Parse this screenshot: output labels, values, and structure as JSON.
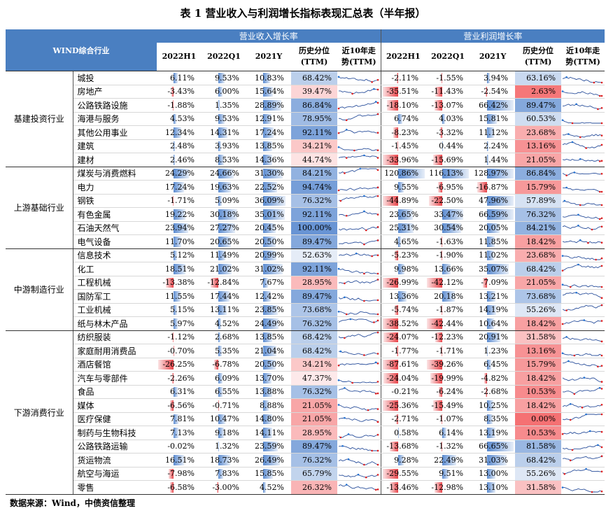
{
  "title": "表 1    营业收入与利润增长指标表现汇总表（半年报）",
  "source": "数据来源：Wind，中债资信整理",
  "header": {
    "industry_col": "WIND综合行业",
    "revenue_group": "营业收入增长率",
    "profit_group": "营业利润增长率",
    "cols": [
      "2022H1",
      "2022Q1",
      "2021Y",
      "历史分位\n(TTM)",
      "近10年走\n势(TTM)"
    ]
  },
  "colors": {
    "header_blue": "#4a7fc1",
    "bar_blue": "#5b8bd0",
    "bar_red": "#e8454a",
    "pct_high": "#5b8bd0",
    "pct_low": "#f4696b",
    "spark_line": "#2a4f9b",
    "spark_red": "#e02020",
    "spark_blue": "#1f6fd0"
  },
  "groups": [
    {
      "name": "基建投资行业",
      "rows": [
        {
          "name": "城投",
          "rev": [
            "6.11%",
            "9.53%",
            "10.83%",
            "68.42%"
          ],
          "prof": [
            "-2.11%",
            "-1.55%",
            "3.94%",
            "63.16%"
          ],
          "rv": [
            6.11,
            9.53,
            10.83,
            68.42
          ],
          "pv": [
            -2.11,
            -1.55,
            3.94,
            63.16
          ]
        },
        {
          "name": "房地产",
          "rev": [
            "-3.43%",
            "6.00%",
            "15.64%",
            "39.47%"
          ],
          "prof": [
            "-35.51%",
            "-11.43%",
            "-2.54%",
            "2.63%"
          ],
          "rv": [
            -3.43,
            6.0,
            15.64,
            39.47
          ],
          "pv": [
            -35.51,
            -11.43,
            -2.54,
            2.63
          ]
        },
        {
          "name": "公路铁路设施",
          "rev": [
            "-1.88%",
            "1.35%",
            "28.89%",
            "86.84%"
          ],
          "prof": [
            "-18.10%",
            "-13.07%",
            "66.42%",
            "89.47%"
          ],
          "rv": [
            -1.88,
            1.35,
            28.89,
            86.84
          ],
          "pv": [
            -18.1,
            -13.07,
            66.42,
            89.47
          ]
        },
        {
          "name": "海港与服务",
          "rev": [
            "4.53%",
            "9.53%",
            "12.91%",
            "78.95%"
          ],
          "prof": [
            "6.74%",
            "4.03%",
            "15.81%",
            "60.53%"
          ],
          "rv": [
            4.53,
            9.53,
            12.91,
            78.95
          ],
          "pv": [
            6.74,
            4.03,
            15.81,
            60.53
          ]
        },
        {
          "name": "其他公用事业",
          "rev": [
            "12.34%",
            "14.31%",
            "17.24%",
            "92.11%"
          ],
          "prof": [
            "-8.23%",
            "-3.32%",
            "11.12%",
            "23.68%"
          ],
          "rv": [
            12.34,
            14.31,
            17.24,
            92.11
          ],
          "pv": [
            -8.23,
            -3.32,
            11.12,
            23.68
          ]
        },
        {
          "name": "建筑",
          "rev": [
            "2.48%",
            "3.93%",
            "13.85%",
            "34.21%"
          ],
          "prof": [
            "-1.45%",
            "0.44%",
            "2.24%",
            "13.16%"
          ],
          "rv": [
            2.48,
            3.93,
            13.85,
            34.21
          ],
          "pv": [
            -1.45,
            0.44,
            2.24,
            13.16
          ]
        },
        {
          "name": "建材",
          "rev": [
            "2.46%",
            "8.53%",
            "14.36%",
            "44.74%"
          ],
          "prof": [
            "-33.96%",
            "-15.69%",
            "1.44%",
            "21.05%"
          ],
          "rv": [
            2.46,
            8.53,
            14.36,
            44.74
          ],
          "pv": [
            -33.96,
            -15.69,
            1.44,
            21.05
          ]
        }
      ]
    },
    {
      "name": "上游基础行业",
      "rows": [
        {
          "name": "煤炭与消费燃料",
          "rev": [
            "24.29%",
            "24.66%",
            "31.30%",
            "84.21%"
          ],
          "prof": [
            "120.86%",
            "116.13%",
            "128.97%",
            "86.84%"
          ],
          "rv": [
            24.29,
            24.66,
            31.3,
            84.21
          ],
          "pv": [
            120.86,
            116.13,
            128.97,
            86.84
          ]
        },
        {
          "name": "电力",
          "rev": [
            "17.24%",
            "19.63%",
            "22.52%",
            "94.74%"
          ],
          "prof": [
            "9.55%",
            "-6.95%",
            "-16.87%",
            "15.79%"
          ],
          "rv": [
            17.24,
            19.63,
            22.52,
            94.74
          ],
          "pv": [
            9.55,
            -6.95,
            -16.87,
            15.79
          ]
        },
        {
          "name": "钢铁",
          "rev": [
            "-1.71%",
            "5.09%",
            "36.09%",
            "76.32%"
          ],
          "prof": [
            "-44.89%",
            "-22.50%",
            "47.96%",
            "57.89%"
          ],
          "rv": [
            -1.71,
            5.09,
            36.09,
            76.32
          ],
          "pv": [
            -44.89,
            -22.5,
            47.96,
            57.89
          ]
        },
        {
          "name": "有色金属",
          "rev": [
            "19.22%",
            "30.18%",
            "35.01%",
            "92.11%"
          ],
          "prof": [
            "23.65%",
            "33.47%",
            "66.59%",
            "76.32%"
          ],
          "rv": [
            19.22,
            30.18,
            35.01,
            92.11
          ],
          "pv": [
            23.65,
            33.47,
            66.59,
            76.32
          ]
        },
        {
          "name": "石油天然气",
          "rev": [
            "23.94%",
            "27.27%",
            "20.45%",
            "100.00%"
          ],
          "prof": [
            "25.31%",
            "30.54%",
            "20.05%",
            "84.21%"
          ],
          "rv": [
            23.94,
            27.27,
            20.45,
            100.0
          ],
          "pv": [
            25.31,
            30.54,
            20.05,
            84.21
          ]
        },
        {
          "name": "电气设备",
          "rev": [
            "11.70%",
            "20.65%",
            "20.50%",
            "89.47%"
          ],
          "prof": [
            "4.65%",
            "-1.63%",
            "11.85%",
            "18.42%"
          ],
          "rv": [
            11.7,
            20.65,
            20.5,
            89.47
          ],
          "pv": [
            4.65,
            -1.63,
            11.85,
            18.42
          ]
        }
      ]
    },
    {
      "name": "中游制造行业",
      "rows": [
        {
          "name": "信息技术",
          "rev": [
            "5.12%",
            "11.49%",
            "20.99%",
            "52.63%"
          ],
          "prof": [
            "-5.23%",
            "-1.90%",
            "11.02%",
            "23.68%"
          ],
          "rv": [
            5.12,
            11.49,
            20.99,
            52.63
          ],
          "pv": [
            -5.23,
            -1.9,
            11.02,
            23.68
          ]
        },
        {
          "name": "化工",
          "rev": [
            "18.51%",
            "21.02%",
            "31.02%",
            "92.11%"
          ],
          "prof": [
            "9.98%",
            "13.66%",
            "35.07%",
            "68.42%"
          ],
          "rv": [
            18.51,
            21.02,
            31.02,
            92.11
          ],
          "pv": [
            9.98,
            13.66,
            35.07,
            68.42
          ]
        },
        {
          "name": "工程机械",
          "rev": [
            "-13.38%",
            "-12.84%",
            "7.67%",
            "28.95%"
          ],
          "prof": [
            "-26.99%",
            "-42.12%",
            "-7.09%",
            "21.05%"
          ],
          "rv": [
            -13.38,
            -12.84,
            7.67,
            28.95
          ],
          "pv": [
            -26.99,
            -42.12,
            -7.09,
            21.05
          ]
        },
        {
          "name": "国防军工",
          "rev": [
            "11.55%",
            "17.44%",
            "12.42%",
            "89.47%"
          ],
          "prof": [
            "13.36%",
            "20.18%",
            "13.21%",
            "73.68%"
          ],
          "rv": [
            11.55,
            17.44,
            12.42,
            89.47
          ],
          "pv": [
            13.36,
            20.18,
            13.21,
            73.68
          ]
        },
        {
          "name": "工业机械",
          "rev": [
            "5.15%",
            "13.11%",
            "23.85%",
            "73.68%"
          ],
          "prof": [
            "-5.74%",
            "-1.87%",
            "14.19%",
            "55.26%"
          ],
          "rv": [
            5.15,
            13.11,
            23.85,
            73.68
          ],
          "pv": [
            -5.74,
            -1.87,
            14.19,
            55.26
          ]
        },
        {
          "name": "纸与林木产品",
          "rev": [
            "5.97%",
            "4.52%",
            "24.49%",
            "76.32%"
          ],
          "prof": [
            "-38.52%",
            "-42.44%",
            "10.64%",
            "18.42%"
          ],
          "rv": [
            5.97,
            4.52,
            24.49,
            76.32
          ],
          "pv": [
            -38.52,
            -42.44,
            10.64,
            18.42
          ]
        }
      ]
    },
    {
      "name": "下游消费行业",
      "rows": [
        {
          "name": "纺织服装",
          "rev": [
            "-1.12%",
            "2.68%",
            "13.85%",
            "68.42%"
          ],
          "prof": [
            "-24.07%",
            "-12.23%",
            "20.91%",
            "31.58%"
          ],
          "rv": [
            -1.12,
            2.68,
            13.85,
            68.42
          ],
          "pv": [
            -24.07,
            -12.23,
            20.91,
            31.58
          ]
        },
        {
          "name": "家庭耐用消费品",
          "rev": [
            "-0.70%",
            "5.35%",
            "21.04%",
            "68.42%"
          ],
          "prof": [
            "-1.77%",
            "-1.71%",
            "1.23%",
            "13.16%"
          ],
          "rv": [
            -0.7,
            5.35,
            21.04,
            68.42
          ],
          "pv": [
            -1.77,
            -1.71,
            1.23,
            13.16
          ]
        },
        {
          "name": "酒店餐馆",
          "rev": [
            "-26.25%",
            "-6.78%",
            "20.50%",
            "34.21%"
          ],
          "prof": [
            "-87.61%",
            "-39.26%",
            "6.45%",
            "15.79%"
          ],
          "rv": [
            -26.25,
            -6.78,
            20.5,
            34.21
          ],
          "pv": [
            -87.61,
            -39.26,
            6.45,
            15.79
          ]
        },
        {
          "name": "汽车与零部件",
          "rev": [
            "-2.26%",
            "6.09%",
            "13.70%",
            "47.37%"
          ],
          "prof": [
            "-24.04%",
            "-19.99%",
            "-4.82%",
            "18.42%"
          ],
          "rv": [
            -2.26,
            6.09,
            13.7,
            47.37
          ],
          "pv": [
            -24.04,
            -19.99,
            -4.82,
            18.42
          ]
        },
        {
          "name": "食品",
          "rev": [
            "6.31%",
            "6.55%",
            "13.88%",
            "76.32%"
          ],
          "prof": [
            "-0.21%",
            "-6.24%",
            "-2.68%",
            "10.53%"
          ],
          "rv": [
            6.31,
            6.55,
            13.88,
            76.32
          ],
          "pv": [
            -0.21,
            -6.24,
            -2.68,
            10.53
          ]
        },
        {
          "name": "媒体",
          "rev": [
            "-6.56%",
            "-0.71%",
            "8.88%",
            "21.05%"
          ],
          "prof": [
            "-25.36%",
            "-15.49%",
            "10.25%",
            "18.42%"
          ],
          "rv": [
            -6.56,
            -0.71,
            8.88,
            21.05
          ],
          "pv": [
            -25.36,
            -15.49,
            10.25,
            18.42
          ]
        },
        {
          "name": "医疗保健",
          "rev": [
            "7.81%",
            "10.47%",
            "14.80%",
            "21.05%"
          ],
          "prof": [
            "-2.71%",
            "-1.07%",
            "8.35%",
            "0.00%"
          ],
          "rv": [
            7.81,
            10.47,
            14.8,
            21.05
          ],
          "pv": [
            -2.71,
            -1.07,
            8.35,
            0.0
          ]
        },
        {
          "name": "制药与生物科技",
          "rev": [
            "7.13%",
            "9.18%",
            "14.11%",
            "28.95%"
          ],
          "prof": [
            "0.58%",
            "6.14%",
            "13.19%",
            "10.53%"
          ],
          "rv": [
            7.13,
            9.18,
            14.11,
            28.95
          ],
          "pv": [
            0.58,
            6.14,
            13.19,
            10.53
          ]
        },
        {
          "name": "公路铁路运输",
          "rev": [
            "-0.02%",
            "1.32%",
            "23.59%",
            "89.47%"
          ],
          "prof": [
            "-13.68%",
            "-1.32%",
            "66.65%",
            "81.58%"
          ],
          "rv": [
            -0.02,
            1.32,
            23.59,
            89.47
          ],
          "pv": [
            -13.68,
            -1.32,
            66.65,
            81.58
          ]
        },
        {
          "name": "货运物流",
          "rev": [
            "16.51%",
            "18.73%",
            "26.49%",
            "76.32%"
          ],
          "prof": [
            "9.28%",
            "22.49%",
            "31.03%",
            "68.42%"
          ],
          "rv": [
            16.51,
            18.73,
            26.49,
            76.32
          ],
          "pv": [
            9.28,
            22.49,
            31.03,
            68.42
          ]
        },
        {
          "name": "航空与海运",
          "rev": [
            "-7.98%",
            "7.83%",
            "15.85%",
            "65.79%"
          ],
          "prof": [
            "-29.55%",
            "9.51%",
            "13.00%",
            "55.26%"
          ],
          "rv": [
            -7.98,
            7.83,
            15.85,
            65.79
          ],
          "pv": [
            -29.55,
            9.51,
            13.0,
            55.26
          ]
        },
        {
          "name": "零售",
          "rev": [
            "-6.58%",
            "-3.00%",
            "4.52%",
            "26.32%"
          ],
          "prof": [
            "-13.46%",
            "-12.98%",
            "13.10%",
            "31.58%"
          ],
          "rv": [
            -6.58,
            -3.0,
            4.52,
            26.32
          ],
          "pv": [
            -13.46,
            -12.98,
            13.1,
            31.58
          ]
        }
      ]
    }
  ]
}
